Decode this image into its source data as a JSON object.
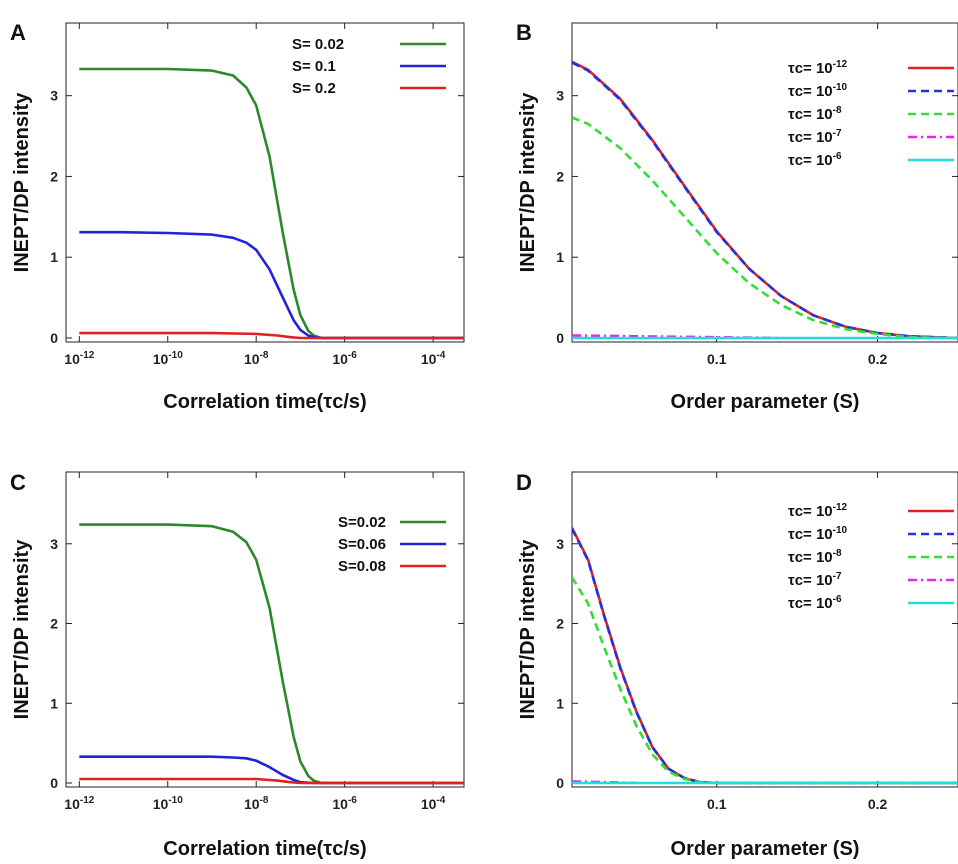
{
  "chart_data": [
    {
      "panel": "A",
      "type": "line",
      "xscale": "log",
      "xlabel": "Correlation time(τc/s)",
      "ylabel": "INEPT/DP intensity",
      "xlim": [
        5e-13,
        0.0005
      ],
      "ylim": [
        -0.05,
        3.9
      ],
      "xticks": [
        {
          "v": 1e-12,
          "base": "10",
          "exp": "-12"
        },
        {
          "v": 1e-10,
          "base": "10",
          "exp": "-10"
        },
        {
          "v": 1e-08,
          "base": "10",
          "exp": "-8"
        },
        {
          "v": 1e-06,
          "base": "10",
          "exp": "-6"
        },
        {
          "v": 0.0001,
          "base": "10",
          "exp": "-4"
        }
      ],
      "yticks": [
        {
          "v": 0,
          "label": "0"
        },
        {
          "v": 1,
          "label": "1"
        },
        {
          "v": 2,
          "label": "2"
        },
        {
          "v": 3,
          "label": "3"
        }
      ],
      "legend": "top-right",
      "series": [
        {
          "name": "S= 0.02",
          "color": "#2a8a2a",
          "dash": "solid",
          "x": [
            1e-12,
            1e-11,
            1e-10,
            1e-09,
            3e-09,
            6e-09,
            1e-08,
            2e-08,
            4e-08,
            7e-08,
            1e-07,
            1.5e-07,
            2e-07,
            3e-07,
            1e-06,
            1e-05,
            0.0005
          ],
          "y": [
            3.33,
            3.33,
            3.33,
            3.31,
            3.25,
            3.1,
            2.88,
            2.25,
            1.3,
            0.6,
            0.28,
            0.09,
            0.03,
            0.0,
            0.0,
            0.0,
            0.0
          ]
        },
        {
          "name": "S= 0.1",
          "color": "#2222dd",
          "dash": "solid",
          "x": [
            1e-12,
            1e-11,
            1e-10,
            1e-09,
            3e-09,
            6e-09,
            1e-08,
            2e-08,
            4e-08,
            7e-08,
            1e-07,
            1.5e-07,
            2e-07,
            3e-07,
            1e-06,
            1e-05,
            0.0005
          ],
          "y": [
            1.31,
            1.31,
            1.3,
            1.28,
            1.24,
            1.18,
            1.09,
            0.85,
            0.5,
            0.22,
            0.1,
            0.03,
            0.01,
            0.0,
            0.0,
            0.0,
            0.0
          ]
        },
        {
          "name": "S= 0.2",
          "color": "#dd2222",
          "dash": "solid",
          "x": [
            1e-12,
            1e-10,
            1e-09,
            1e-08,
            3e-08,
            6e-08,
            1e-07,
            2e-07,
            0.0005
          ],
          "y": [
            0.06,
            0.06,
            0.06,
            0.05,
            0.03,
            0.01,
            0.0,
            0.0,
            0.0
          ]
        }
      ]
    },
    {
      "panel": "B",
      "type": "line",
      "xscale": "linear",
      "xlabel": "Order parameter (S)",
      "ylabel": "INEPT/DP intensity",
      "xlim": [
        0.01,
        0.25
      ],
      "ylim": [
        -0.05,
        3.9
      ],
      "xticks": [
        {
          "v": 0.1,
          "label": "0.1"
        },
        {
          "v": 0.2,
          "label": "0.2"
        }
      ],
      "yticks": [
        {
          "v": 0,
          "label": "0"
        },
        {
          "v": 1,
          "label": "1"
        },
        {
          "v": 2,
          "label": "2"
        },
        {
          "v": 3,
          "label": "3"
        }
      ],
      "legend": "top-right",
      "series": [
        {
          "name": "τc= 10-12",
          "base": "τc= 10",
          "exp": "-12",
          "color": "#dd2222",
          "dash": "solid",
          "x": [
            0.01,
            0.02,
            0.04,
            0.06,
            0.08,
            0.1,
            0.12,
            0.14,
            0.16,
            0.18,
            0.2,
            0.22,
            0.25
          ],
          "y": [
            3.42,
            3.32,
            2.96,
            2.45,
            1.88,
            1.32,
            0.86,
            0.52,
            0.28,
            0.14,
            0.06,
            0.02,
            0.0
          ]
        },
        {
          "name": "τc= 10-10",
          "base": "τc= 10",
          "exp": "-10",
          "color": "#2233dd",
          "dash": "dash",
          "x": [
            0.01,
            0.02,
            0.04,
            0.06,
            0.08,
            0.1,
            0.12,
            0.14,
            0.16,
            0.18,
            0.2,
            0.22,
            0.25
          ],
          "y": [
            3.41,
            3.31,
            2.95,
            2.44,
            1.87,
            1.31,
            0.86,
            0.52,
            0.28,
            0.14,
            0.06,
            0.02,
            0.0
          ]
        },
        {
          "name": "τc= 10-8",
          "base": "τc= 10",
          "exp": "-8",
          "color": "#33dd33",
          "dash": "dash",
          "x": [
            0.01,
            0.02,
            0.04,
            0.06,
            0.08,
            0.1,
            0.12,
            0.14,
            0.16,
            0.18,
            0.2,
            0.22,
            0.25
          ],
          "y": [
            2.73,
            2.65,
            2.35,
            1.95,
            1.5,
            1.05,
            0.68,
            0.41,
            0.22,
            0.11,
            0.05,
            0.01,
            0.0
          ]
        },
        {
          "name": "τc= 10-7",
          "base": "τc= 10",
          "exp": "-7",
          "color": "#ee22ee",
          "dash": "dashdot",
          "x": [
            0.01,
            0.14
          ],
          "y": [
            0.03,
            0.0
          ]
        },
        {
          "name": "τc= 10-6",
          "base": "τc= 10",
          "exp": "-6",
          "color": "#22dddd",
          "dash": "solid",
          "x": [
            0.01,
            0.25
          ],
          "y": [
            0.0,
            0.0
          ]
        }
      ]
    },
    {
      "panel": "C",
      "type": "line",
      "xscale": "log",
      "xlabel": "Correlation time(τc/s)",
      "ylabel": "INEPT/DP intensity",
      "xlim": [
        5e-13,
        0.0005
      ],
      "ylim": [
        -0.05,
        3.9
      ],
      "xticks": [
        {
          "v": 1e-12,
          "base": "10",
          "exp": "-12"
        },
        {
          "v": 1e-10,
          "base": "10",
          "exp": "-10"
        },
        {
          "v": 1e-08,
          "base": "10",
          "exp": "-8"
        },
        {
          "v": 1e-06,
          "base": "10",
          "exp": "-6"
        },
        {
          "v": 0.0001,
          "base": "10",
          "exp": "-4"
        }
      ],
      "yticks": [
        {
          "v": 0,
          "label": "0"
        },
        {
          "v": 1,
          "label": "1"
        },
        {
          "v": 2,
          "label": "2"
        },
        {
          "v": 3,
          "label": "3"
        }
      ],
      "legend": "top-right",
      "series": [
        {
          "name": "S=0.02",
          "color": "#2a8a2a",
          "dash": "solid",
          "x": [
            1e-12,
            1e-11,
            1e-10,
            1e-09,
            3e-09,
            6e-09,
            1e-08,
            2e-08,
            4e-08,
            7e-08,
            1e-07,
            1.5e-07,
            2e-07,
            3e-07,
            1e-06,
            1e-05,
            0.0005
          ],
          "y": [
            3.24,
            3.24,
            3.24,
            3.22,
            3.15,
            3.02,
            2.8,
            2.2,
            1.27,
            0.58,
            0.27,
            0.09,
            0.03,
            0.0,
            0.0,
            0.0,
            0.0
          ]
        },
        {
          "name": "S=0.06",
          "color": "#2222dd",
          "dash": "solid",
          "x": [
            1e-12,
            1e-11,
            1e-10,
            1e-09,
            3e-09,
            6e-09,
            1e-08,
            2e-08,
            4e-08,
            7e-08,
            1e-07,
            2e-07,
            0.0005
          ],
          "y": [
            0.33,
            0.33,
            0.33,
            0.33,
            0.32,
            0.31,
            0.28,
            0.2,
            0.1,
            0.04,
            0.01,
            0.0,
            0.0
          ]
        },
        {
          "name": "S=0.08",
          "color": "#dd2222",
          "dash": "solid",
          "x": [
            1e-12,
            1e-10,
            1e-09,
            1e-08,
            3e-08,
            6e-08,
            1e-07,
            2e-07,
            0.0005
          ],
          "y": [
            0.05,
            0.05,
            0.05,
            0.05,
            0.03,
            0.01,
            0.0,
            0.0,
            0.0
          ]
        }
      ]
    },
    {
      "panel": "D",
      "type": "line",
      "xscale": "linear",
      "xlabel": "Order parameter (S)",
      "ylabel": "INEPT/DP intensity",
      "xlim": [
        0.01,
        0.25
      ],
      "ylim": [
        -0.05,
        3.9
      ],
      "xticks": [
        {
          "v": 0.1,
          "label": "0.1"
        },
        {
          "v": 0.2,
          "label": "0.2"
        }
      ],
      "yticks": [
        {
          "v": 0,
          "label": "0"
        },
        {
          "v": 1,
          "label": "1"
        },
        {
          "v": 2,
          "label": "2"
        },
        {
          "v": 3,
          "label": "3"
        }
      ],
      "legend": "top-right",
      "series": [
        {
          "name": "τc= 10-12",
          "base": "τc= 10",
          "exp": "-12",
          "color": "#dd2222",
          "dash": "solid",
          "x": [
            0.01,
            0.02,
            0.03,
            0.04,
            0.05,
            0.06,
            0.07,
            0.08,
            0.09,
            0.1,
            0.25
          ],
          "y": [
            3.2,
            2.8,
            2.1,
            1.45,
            0.9,
            0.45,
            0.18,
            0.06,
            0.01,
            0.0,
            0.0
          ]
        },
        {
          "name": "τc= 10-10",
          "base": "τc= 10",
          "exp": "-10",
          "color": "#2233dd",
          "dash": "dash",
          "x": [
            0.01,
            0.02,
            0.03,
            0.04,
            0.05,
            0.06,
            0.07,
            0.08,
            0.09,
            0.1,
            0.25
          ],
          "y": [
            3.19,
            2.79,
            2.09,
            1.44,
            0.89,
            0.45,
            0.18,
            0.06,
            0.01,
            0.0,
            0.0
          ]
        },
        {
          "name": "τc= 10-8",
          "base": "τc= 10",
          "exp": "-8",
          "color": "#33dd33",
          "dash": "dash",
          "x": [
            0.01,
            0.02,
            0.03,
            0.04,
            0.05,
            0.06,
            0.07,
            0.08,
            0.09,
            0.1
          ],
          "y": [
            2.58,
            2.25,
            1.7,
            1.18,
            0.72,
            0.36,
            0.14,
            0.05,
            0.01,
            0.0
          ]
        },
        {
          "name": "τc= 10-7",
          "base": "τc= 10",
          "exp": "-7",
          "color": "#ee22ee",
          "dash": "dashdot",
          "x": [
            0.01,
            0.05
          ],
          "y": [
            0.02,
            0.0
          ]
        },
        {
          "name": "τc= 10-6",
          "base": "τc= 10",
          "exp": "-6",
          "color": "#22dddd",
          "dash": "solid",
          "x": [
            0.01,
            0.25
          ],
          "y": [
            0.0,
            0.0
          ]
        }
      ]
    }
  ]
}
